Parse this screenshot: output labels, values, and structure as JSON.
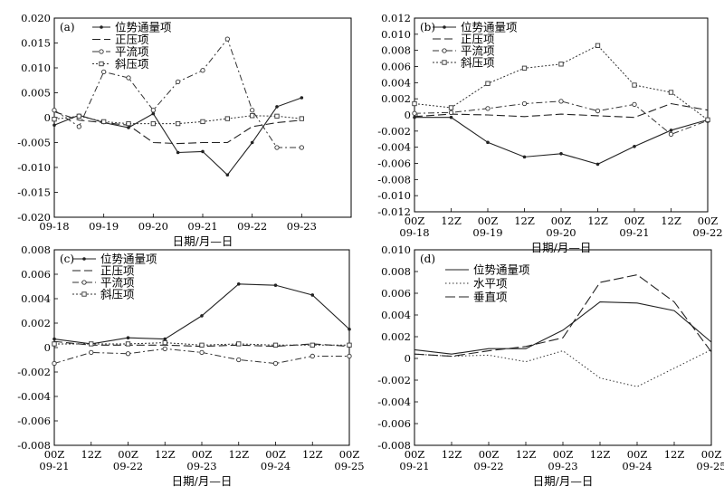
{
  "chart_data": [
    {
      "type": "line",
      "panel_label": "(a)",
      "xlabel": "日期/月—日",
      "ylabel": "",
      "ylim": [
        -0.02,
        0.02
      ],
      "yticks": [
        -0.02,
        -0.015,
        -0.01,
        -0.005,
        0,
        0.005,
        0.01,
        0.015,
        0.02
      ],
      "ytick_labels": [
        "-0.020",
        "-0.015",
        "-0.010",
        "-0.005",
        "0",
        "0.005",
        "0.010",
        "0.015",
        "0.020"
      ],
      "xlim": [
        0,
        12
      ],
      "x_tick_positions": [
        0,
        2,
        4,
        6,
        8,
        10,
        12
      ],
      "x_tick_labels": [
        [
          "09-18"
        ],
        [
          "09-19"
        ],
        [
          "09-20"
        ],
        [
          "09-21"
        ],
        [
          "09-22"
        ],
        [
          "09-23"
        ]
      ],
      "x_label_positions": [
        0,
        2,
        4,
        6,
        8,
        10
      ],
      "legend_position": "top-left",
      "x": [
        0,
        1,
        2,
        3,
        4,
        5,
        6,
        7,
        8,
        9,
        10
      ],
      "series": [
        {
          "name": "位势通量项",
          "style": "solid-dot",
          "values": [
            -0.0015,
            0.0005,
            -0.001,
            -0.002,
            0.0008,
            -0.007,
            -0.0068,
            -0.0115,
            -0.005,
            0.0022,
            0.004
          ]
        },
        {
          "name": "正压项",
          "style": "dash",
          "values": [
            0.0012,
            -0.0005,
            -0.001,
            -0.0015,
            -0.005,
            -0.0052,
            -0.005,
            -0.005,
            -0.0018,
            -0.001,
            -0.0005
          ]
        },
        {
          "name": "平流项",
          "style": "dashdot-circle",
          "values": [
            0.0015,
            -0.0018,
            0.0092,
            0.008,
            0.0015,
            0.0072,
            0.0095,
            0.0158,
            0.0015,
            -0.006,
            -0.006
          ]
        },
        {
          "name": "斜压项",
          "style": "dot-square",
          "values": [
            -0.0003,
            0.0003,
            -0.0008,
            -0.0012,
            -0.0012,
            -0.0012,
            -0.0008,
            -0.0002,
            0.0004,
            0.0003,
            -0.0002
          ]
        }
      ]
    },
    {
      "type": "line",
      "panel_label": "(b)",
      "xlabel": "日期/月—日",
      "ylabel": "",
      "ylim": [
        -0.012,
        0.012
      ],
      "yticks": [
        -0.012,
        -0.01,
        -0.008,
        -0.006,
        -0.004,
        -0.002,
        0,
        0.002,
        0.004,
        0.006,
        0.008,
        0.01,
        0.012
      ],
      "ytick_labels": [
        "-0.012",
        "-0.010",
        "-0.008",
        "-0.006",
        "-0.004",
        "-0.002",
        "0",
        "0.002",
        "0.004",
        "0.006",
        "0.008",
        "0.010",
        "0.012"
      ],
      "xlim": [
        0,
        8
      ],
      "x_tick_positions": [
        0,
        1,
        2,
        3,
        4,
        5,
        6,
        7,
        8
      ],
      "x_tick_labels": [
        [
          "00Z",
          "09-18"
        ],
        [
          "12Z"
        ],
        [
          "00Z",
          "09-19"
        ],
        [
          "12Z"
        ],
        [
          "00Z",
          "09-20"
        ],
        [
          "12Z"
        ],
        [
          "00Z",
          "09-21"
        ],
        [
          "12Z"
        ],
        [
          "00Z",
          "09-22"
        ]
      ],
      "x_label_positions": [
        0,
        1,
        2,
        3,
        4,
        5,
        6,
        7,
        8
      ],
      "legend_position": "top-left",
      "x": [
        0,
        1,
        2,
        3,
        4,
        5,
        6,
        7,
        8
      ],
      "series": [
        {
          "name": "位势通量项",
          "style": "solid-dot",
          "values": [
            -0.0003,
            -0.0003,
            -0.0034,
            -0.0052,
            -0.0048,
            -0.0061,
            -0.0039,
            -0.0019,
            -0.0006
          ]
        },
        {
          "name": "正压项",
          "style": "dash",
          "values": [
            -0.0002,
            0.0001,
            0.0,
            -0.0002,
            0.0001,
            -0.0001,
            -0.0003,
            0.0014,
            0.0006
          ]
        },
        {
          "name": "平流项",
          "style": "dashdot-circle",
          "values": [
            0.0002,
            0.0003,
            0.0008,
            0.0014,
            0.0017,
            0.0005,
            0.0013,
            -0.0024,
            -0.0007
          ]
        },
        {
          "name": "斜压项",
          "style": "dot-square",
          "values": [
            0.0014,
            0.0009,
            0.0039,
            0.0058,
            0.0063,
            0.0086,
            0.0037,
            0.0028,
            -0.0006
          ]
        }
      ]
    },
    {
      "type": "line",
      "panel_label": "(c)",
      "xlabel": "日期/月—日",
      "ylabel": "",
      "ylim": [
        -0.008,
        0.008
      ],
      "yticks": [
        -0.008,
        -0.006,
        -0.004,
        -0.002,
        0,
        0.002,
        0.004,
        0.006,
        0.008
      ],
      "ytick_labels": [
        "-0.008",
        "-0.006",
        "-0.004",
        "-0.002",
        "0",
        "0.002",
        "0.004",
        "0.006",
        "0.008"
      ],
      "xlim": [
        0,
        8
      ],
      "x_tick_positions": [
        0,
        1,
        2,
        3,
        4,
        5,
        6,
        7,
        8
      ],
      "x_tick_labels": [
        [
          "00Z",
          "09-21"
        ],
        [
          "12Z"
        ],
        [
          "00Z",
          "09-22"
        ],
        [
          "12Z"
        ],
        [
          "00Z",
          "09-23"
        ],
        [
          "12Z"
        ],
        [
          "00Z",
          "09-24"
        ],
        [
          "12Z"
        ],
        [
          "00Z",
          "09-25"
        ]
      ],
      "x_label_positions": [
        0,
        1,
        2,
        3,
        4,
        5,
        6,
        7,
        8
      ],
      "legend_position": "top-left",
      "x": [
        0,
        1,
        2,
        3,
        4,
        5,
        6,
        7,
        8
      ],
      "series": [
        {
          "name": "位势通量项",
          "style": "solid-dot",
          "values": [
            0.0007,
            0.0003,
            0.0008,
            0.0007,
            0.0026,
            0.0052,
            0.0051,
            0.0043,
            0.0015
          ]
        },
        {
          "name": "正压项",
          "style": "dash",
          "values": [
            0.0005,
            0.0002,
            0.0002,
            0.0002,
            0.0001,
            0.0002,
            0.0001,
            0.0003,
            0.0001
          ]
        },
        {
          "name": "平流项",
          "style": "dashdot-circle",
          "values": [
            -0.0013,
            -0.0004,
            -0.0005,
            -0.0001,
            -0.0004,
            -0.001,
            -0.0013,
            -0.0007,
            -0.0007
          ]
        },
        {
          "name": "斜压项",
          "style": "dot-square",
          "values": [
            0.0003,
            0.0003,
            0.0003,
            0.0004,
            0.0002,
            0.0003,
            0.0002,
            0.0002,
            0.0002
          ]
        }
      ]
    },
    {
      "type": "line",
      "panel_label": "(d)",
      "xlabel": "日期/月—日",
      "ylabel": "",
      "ylim": [
        -0.008,
        0.01
      ],
      "yticks": [
        -0.008,
        -0.006,
        -0.004,
        -0.002,
        0,
        0.002,
        0.004,
        0.006,
        0.008,
        0.01
      ],
      "ytick_labels": [
        "-0.008",
        "-0.006",
        "-0.004",
        "-0.002",
        "0",
        "0.002",
        "0.004",
        "0.006",
        "0.008",
        "0.010"
      ],
      "xlim": [
        0,
        8
      ],
      "x_tick_positions": [
        0,
        1,
        2,
        3,
        4,
        5,
        6,
        7,
        8
      ],
      "x_tick_labels": [
        [
          "00Z",
          "09-21"
        ],
        [
          "12Z"
        ],
        [
          "00Z",
          "09-22"
        ],
        [
          "12Z"
        ],
        [
          "00Z",
          "09-23"
        ],
        [
          "12Z"
        ],
        [
          "00Z",
          "09-24"
        ],
        [
          "12Z"
        ],
        [
          "00Z",
          "09-25"
        ]
      ],
      "x_label_positions": [
        0,
        1,
        2,
        3,
        4,
        5,
        6,
        7,
        8
      ],
      "legend_position": "top-left",
      "x": [
        0,
        1,
        2,
        3,
        4,
        5,
        6,
        7,
        8
      ],
      "series": [
        {
          "name": "位势通量项",
          "style": "solid",
          "values": [
            0.0008,
            0.0004,
            0.0009,
            0.0009,
            0.0026,
            0.0052,
            0.0051,
            0.0044,
            0.0015
          ]
        },
        {
          "name": "水平项",
          "style": "dotted",
          "values": [
            0.0004,
            0.0002,
            0.0003,
            -0.0003,
            0.0007,
            -0.0018,
            -0.0026,
            -0.0009,
            0.0008
          ]
        },
        {
          "name": "垂直项",
          "style": "longdash",
          "values": [
            0.0004,
            0.0002,
            0.0007,
            0.0011,
            0.0019,
            0.007,
            0.0077,
            0.0052,
            0.0006
          ]
        }
      ]
    }
  ]
}
